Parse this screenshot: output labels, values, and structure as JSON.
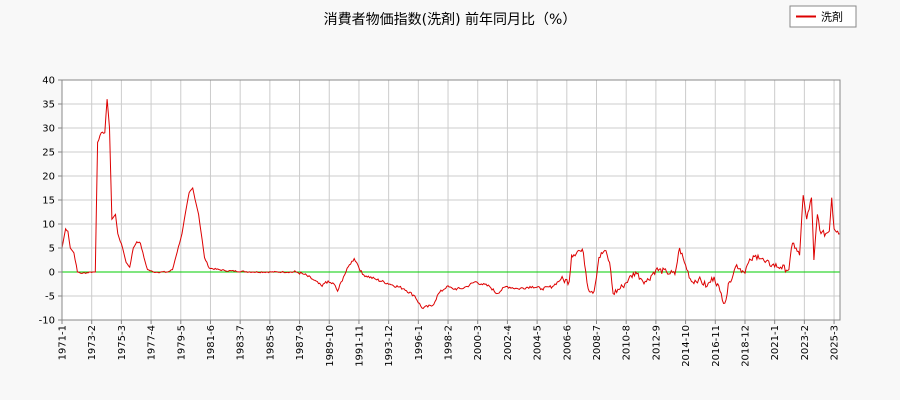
{
  "chart_data": {
    "type": "line",
    "title": "消費者物価指数(洗剤) 前年同月比（%）",
    "xlabel": "",
    "ylabel": "",
    "x_range": [
      "1971-01",
      "2025-08"
    ],
    "ylim": [
      -10,
      40
    ],
    "y_ticks": [
      40,
      35,
      30,
      25,
      20,
      15,
      10,
      5,
      0,
      -5,
      -10
    ],
    "x_tick_labels": [
      "1971-1",
      "1973-2",
      "1975-3",
      "1977-4",
      "1979-5",
      "1981-6",
      "1983-7",
      "1985-8",
      "1987-9",
      "1989-10",
      "1991-11",
      "1993-12",
      "1996-1",
      "1998-2",
      "2000-3",
      "2002-4",
      "2004-5",
      "2006-6",
      "2008-7",
      "2010-8",
      "2012-9",
      "2014-10",
      "2016-11",
      "2018-12",
      "2021-1",
      "2023-2",
      "2025-3"
    ],
    "grid": true,
    "zero_line": true,
    "legend_position": "top-right",
    "colors": {
      "series": "#dd0000",
      "zero_line": "#00cc00",
      "grid": "#cccccc"
    },
    "series": [
      {
        "name": "洗剤",
        "points": [
          [
            "1971-01",
            5.0
          ],
          [
            "1971-04",
            9.0
          ],
          [
            "1971-06",
            8.5
          ],
          [
            "1971-08",
            5.0
          ],
          [
            "1971-11",
            4.0
          ],
          [
            "1972-02",
            0.0
          ],
          [
            "1972-06",
            -0.3
          ],
          [
            "1973-01",
            0.0
          ],
          [
            "1973-05",
            0.0
          ],
          [
            "1973-07",
            27.0
          ],
          [
            "1973-10",
            29.0
          ],
          [
            "1974-01",
            29.0
          ],
          [
            "1974-03",
            36.0
          ],
          [
            "1974-05",
            30.0
          ],
          [
            "1974-07",
            11.0
          ],
          [
            "1974-10",
            12.0
          ],
          [
            "1974-12",
            8.0
          ],
          [
            "1975-04",
            5.0
          ],
          [
            "1975-07",
            2.0
          ],
          [
            "1975-10",
            1.0
          ],
          [
            "1976-01",
            5.0
          ],
          [
            "1976-04",
            6.3
          ],
          [
            "1976-07",
            6.0
          ],
          [
            "1976-10",
            3.0
          ],
          [
            "1977-01",
            0.5
          ],
          [
            "1977-06",
            0.0
          ],
          [
            "1978-06",
            0.0
          ],
          [
            "1978-10",
            0.5
          ],
          [
            "1979-06",
            8.0
          ],
          [
            "1979-12",
            16.5
          ],
          [
            "1980-03",
            17.5
          ],
          [
            "1980-08",
            12.0
          ],
          [
            "1981-01",
            3.0
          ],
          [
            "1981-05",
            0.8
          ],
          [
            "1982-06",
            0.3
          ],
          [
            "1984-06",
            0.0
          ],
          [
            "1986-06",
            0.0
          ],
          [
            "1987-06",
            0.0
          ],
          [
            "1988-01",
            -0.5
          ],
          [
            "1988-08",
            -1.5
          ],
          [
            "1989-04",
            -3.0
          ],
          [
            "1989-07",
            -2.0
          ],
          [
            "1990-02",
            -2.5
          ],
          [
            "1990-05",
            -4.0
          ],
          [
            "1990-10",
            -1.0
          ],
          [
            "1991-03",
            1.5
          ],
          [
            "1991-07",
            2.8
          ],
          [
            "1991-09",
            2.0
          ],
          [
            "1992-02",
            -0.5
          ],
          [
            "1993-01",
            -1.5
          ],
          [
            "1994-01",
            -2.5
          ],
          [
            "1995-01",
            -3.5
          ],
          [
            "1995-10",
            -5.0
          ],
          [
            "1996-04",
            -7.5
          ],
          [
            "1997-01",
            -7.0
          ],
          [
            "1997-06",
            -4.5
          ],
          [
            "1998-01",
            -3.0
          ],
          [
            "1998-06",
            -3.5
          ],
          [
            "1999-01",
            -3.5
          ],
          [
            "1999-06",
            -3.0
          ],
          [
            "2000-01",
            -2.0
          ],
          [
            "2000-06",
            -2.5
          ],
          [
            "2001-01",
            -3.0
          ],
          [
            "2001-07",
            -4.5
          ],
          [
            "2002-03",
            -3.0
          ],
          [
            "2003-01",
            -3.5
          ],
          [
            "2004-01",
            -3.0
          ],
          [
            "2004-09",
            -3.5
          ],
          [
            "2005-06",
            -3.0
          ],
          [
            "2006-01",
            -1.5
          ],
          [
            "2006-08",
            -2.0
          ],
          [
            "2006-10",
            3.5
          ],
          [
            "2007-04",
            4.5
          ],
          [
            "2007-08",
            4.0
          ],
          [
            "2007-12",
            -3.5
          ],
          [
            "2008-05",
            -4.0
          ],
          [
            "2008-09",
            3.0
          ],
          [
            "2009-02",
            4.5
          ],
          [
            "2009-06",
            2.0
          ],
          [
            "2009-09",
            -4.5
          ],
          [
            "2010-05",
            -3.0
          ],
          [
            "2010-10",
            -1.5
          ],
          [
            "2011-04",
            0.0
          ],
          [
            "2011-09",
            -1.5
          ],
          [
            "2012-01",
            -2.0
          ],
          [
            "2012-09",
            0.5
          ],
          [
            "2013-06",
            0.0
          ],
          [
            "2014-01",
            -0.5
          ],
          [
            "2014-05",
            5.0
          ],
          [
            "2014-09",
            2.0
          ],
          [
            "2015-03",
            -2.0
          ],
          [
            "2015-09",
            -1.5
          ],
          [
            "2016-04",
            -3.0
          ],
          [
            "2016-10",
            -1.0
          ],
          [
            "2017-03",
            -4.0
          ],
          [
            "2017-07",
            -6.5
          ],
          [
            "2017-11",
            -2.0
          ],
          [
            "2018-05",
            1.5
          ],
          [
            "2018-11",
            0.0
          ],
          [
            "2019-05",
            2.5
          ],
          [
            "2019-11",
            3.5
          ],
          [
            "2020-05",
            2.0
          ],
          [
            "2020-11",
            1.5
          ],
          [
            "2021-06",
            1.0
          ],
          [
            "2022-01",
            0.5
          ],
          [
            "2022-04",
            6.0
          ],
          [
            "2022-07",
            5.0
          ],
          [
            "2022-10",
            3.5
          ],
          [
            "2023-01",
            16.0
          ],
          [
            "2023-04",
            11.0
          ],
          [
            "2023-06",
            13.0
          ],
          [
            "2023-08",
            15.5
          ],
          [
            "2023-10",
            2.5
          ],
          [
            "2024-01",
            12.0
          ],
          [
            "2024-04",
            8.0
          ],
          [
            "2024-08",
            8.0
          ],
          [
            "2024-11",
            8.5
          ],
          [
            "2025-01",
            15.5
          ],
          [
            "2025-03",
            9.0
          ],
          [
            "2025-06",
            8.5
          ],
          [
            "2025-08",
            8.0
          ]
        ]
      }
    ]
  }
}
